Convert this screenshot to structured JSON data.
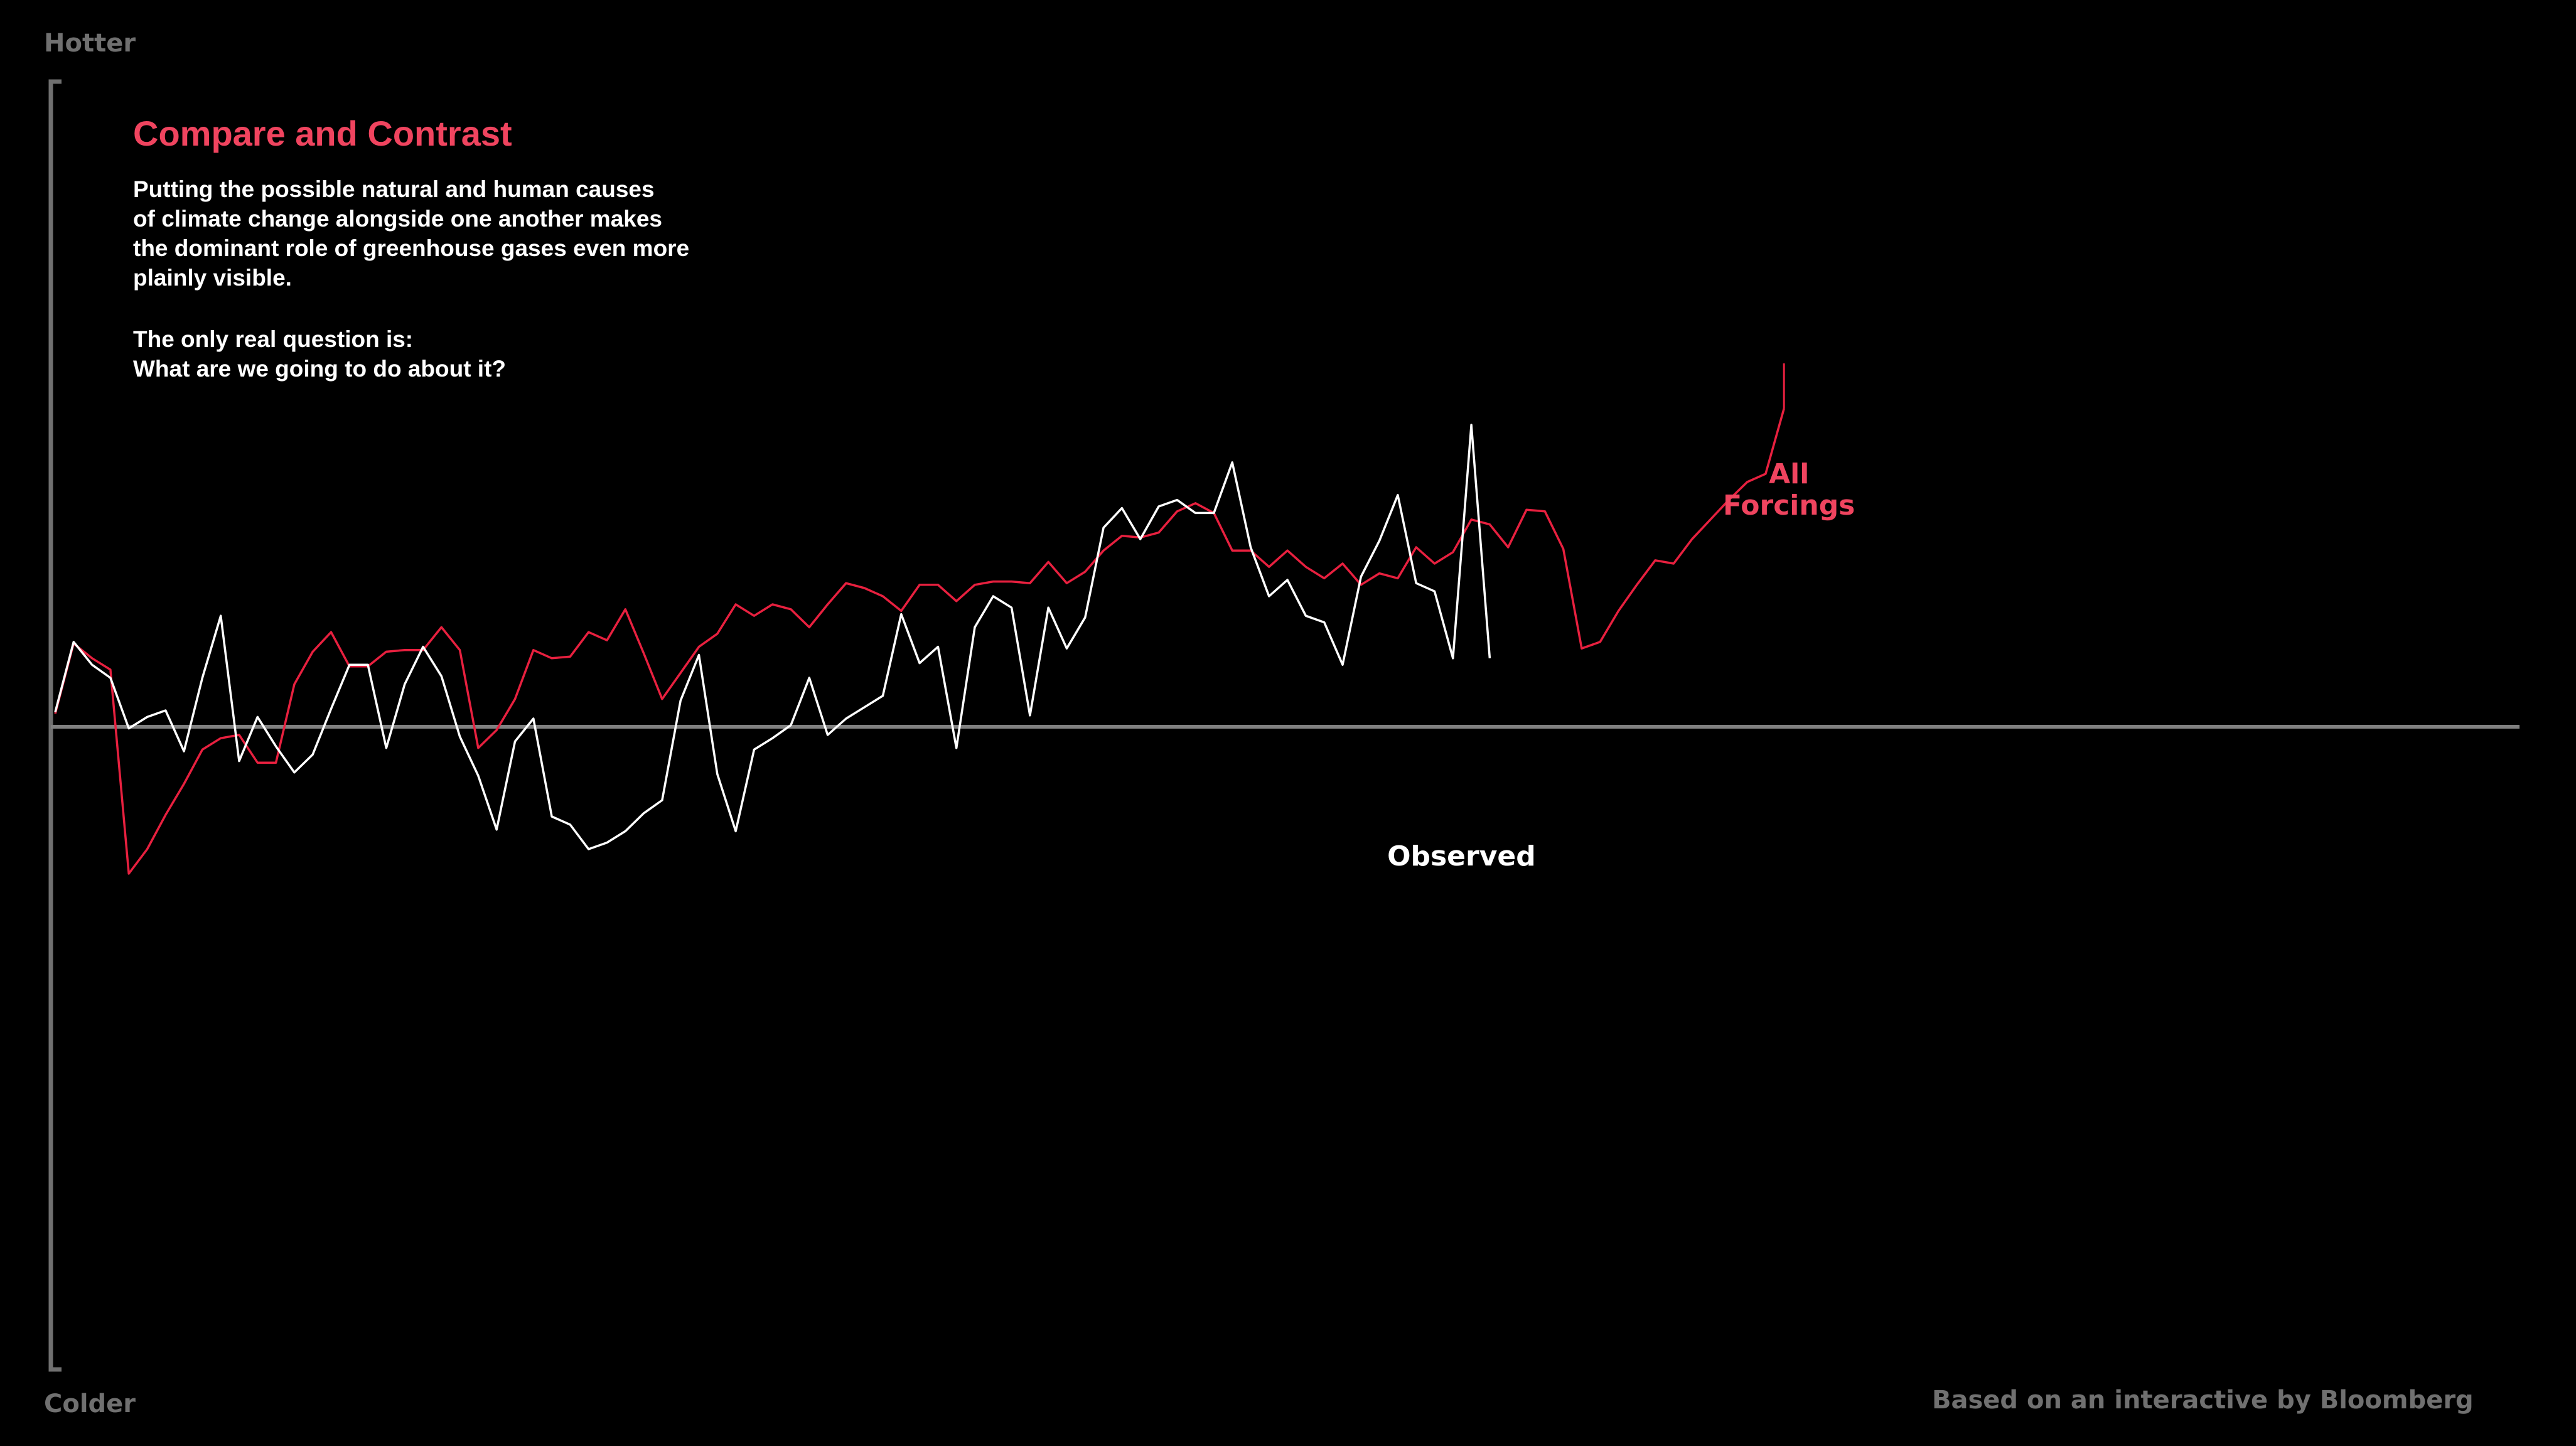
{
  "page": {
    "hotter_label": "Hotter",
    "colder_label": "Colder",
    "source": "Based on an interactive by Bloomberg",
    "title": "Compare and Contrast",
    "paragraph1": [
      "Putting the possible natural and human causes",
      "of climate change alongside one another makes",
      "the dominant role of greenhouse gases even more",
      "plainly visible."
    ],
    "paragraph2": [
      "The only real question is:",
      "What are we going to do about it?"
    ]
  },
  "colors": {
    "background": "#000000",
    "observed": "#ffffff",
    "forcings": "#e8203f",
    "forcings_label": "#f0445f",
    "axis": "#707070",
    "zero_line": "#808080"
  },
  "chart_data": {
    "type": "line",
    "title": "Compare and Contrast",
    "xlabel": "",
    "ylabel": "",
    "y_top_label": "Hotter",
    "y_bottom_label": "Colder",
    "ylim": [
      -400,
      400
    ],
    "x_step": 1,
    "grid": false,
    "zero_line": true,
    "series": [
      {
        "name": "Observed",
        "label_lines": [
          "Observed"
        ],
        "color": "#ffffff",
        "values": [
          9,
          52,
          38,
          30,
          -1,
          6,
          10,
          -15,
          30,
          68,
          -21,
          6,
          -12,
          -28,
          -17,
          11,
          38,
          38,
          -13,
          26,
          49,
          31,
          -6,
          -30,
          -63,
          -9,
          5,
          -55,
          -60,
          -75,
          -71,
          -64,
          -53,
          -45,
          16,
          44,
          -29,
          -64,
          -14,
          -7,
          1,
          30,
          -5,
          5,
          12,
          19,
          69,
          39,
          49,
          -13,
          61,
          80,
          73,
          7,
          73,
          48,
          67,
          122,
          134,
          115,
          135,
          139,
          131,
          131,
          162,
          110,
          80,
          90,
          68,
          64,
          38,
          92,
          114,
          142,
          88,
          83,
          42,
          185,
          42
        ]
      },
      {
        "name": "All Forcings",
        "label_lines": [
          "All",
          "Forcings"
        ],
        "color": "#e8203f",
        "values": [
          8,
          51,
          42,
          35,
          -90,
          -75,
          -54,
          -35,
          -14,
          -7,
          -5,
          -22,
          -22,
          26,
          46,
          58,
          37,
          37,
          46,
          47,
          47,
          61,
          47,
          -13,
          -2,
          17,
          47,
          42,
          43,
          58,
          53,
          72,
          45,
          17,
          33,
          49,
          57,
          75,
          68,
          75,
          72,
          61,
          75,
          88,
          85,
          80,
          71,
          87,
          87,
          77,
          87,
          89,
          89,
          88,
          101,
          88,
          95,
          108,
          117,
          116,
          119,
          132,
          137,
          131,
          108,
          108,
          98,
          108,
          98,
          91,
          100,
          87,
          94,
          91,
          110,
          100,
          107,
          127,
          124,
          110,
          133,
          132,
          109,
          48,
          52,
          71,
          87,
          102,
          100,
          115,
          127,
          139,
          150,
          155,
          195
        ]
      }
    ]
  }
}
